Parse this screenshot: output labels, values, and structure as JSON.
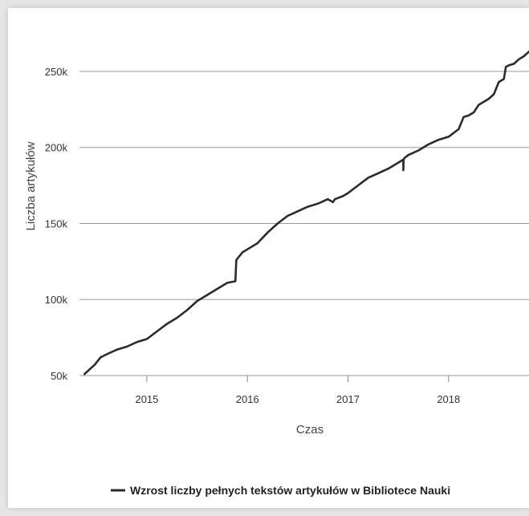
{
  "chart_data": {
    "type": "line",
    "title": "",
    "xlabel": "Czas",
    "ylabel": "Liczba artykułów",
    "xlim": [
      2014.33,
      2018.8
    ],
    "ylim": [
      50000,
      260000
    ],
    "grid": true,
    "legend_placement": "bottom",
    "x_ticks": [
      2015,
      2016,
      2017,
      2018
    ],
    "x_tick_labels": [
      "2015",
      "2016",
      "2017",
      "2018"
    ],
    "y_ticks": [
      50000,
      100000,
      150000,
      200000,
      250000
    ],
    "y_tick_labels": [
      "50k",
      "100k",
      "150k",
      "200k",
      "250k"
    ],
    "series": [
      {
        "name": "Wzrost liczby pełnych tekstów artykułów w Bibliotece Nauki",
        "color": "#2b2b2b",
        "x": [
          2014.38,
          2014.48,
          2014.54,
          2014.6,
          2014.7,
          2014.8,
          2014.9,
          2015.0,
          2015.1,
          2015.2,
          2015.3,
          2015.4,
          2015.5,
          2015.6,
          2015.7,
          2015.8,
          2015.88,
          2015.89,
          2015.95,
          2016.0,
          2016.1,
          2016.2,
          2016.3,
          2016.4,
          2016.5,
          2016.6,
          2016.7,
          2016.8,
          2016.85,
          2016.87,
          2016.95,
          2017.0,
          2017.1,
          2017.2,
          2017.3,
          2017.4,
          2017.5,
          2017.55,
          2017.551,
          2017.553,
          2017.56,
          2017.6,
          2017.7,
          2017.8,
          2017.9,
          2018.0,
          2018.1,
          2018.15,
          2018.2,
          2018.25,
          2018.3,
          2018.35,
          2018.4,
          2018.45,
          2018.5,
          2018.55,
          2018.57,
          2018.6,
          2018.65,
          2018.7,
          2018.75,
          2018.8
        ],
        "y": [
          51000,
          57000,
          62000,
          64000,
          67000,
          69000,
          72000,
          74000,
          79000,
          84000,
          88000,
          93000,
          99000,
          103000,
          107000,
          111000,
          112000,
          126000,
          131000,
          133000,
          137000,
          144000,
          150000,
          155000,
          158000,
          161000,
          163000,
          166000,
          164000,
          166000,
          168000,
          170000,
          175000,
          180000,
          183000,
          186000,
          190000,
          192000,
          185000,
          192000,
          193000,
          195000,
          198000,
          202000,
          205000,
          207000,
          212000,
          220000,
          221000,
          223000,
          228000,
          230000,
          232000,
          235000,
          243000,
          245000,
          253000,
          254000,
          255000,
          258000,
          260000,
          263000
        ]
      }
    ]
  }
}
